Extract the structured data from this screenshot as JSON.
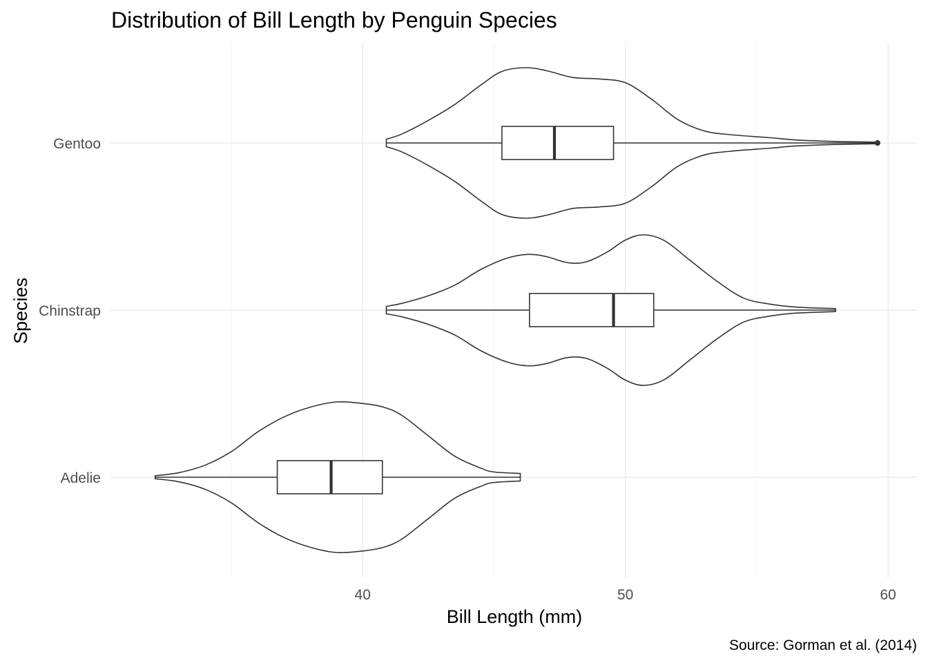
{
  "chart_data": {
    "type": "violin",
    "title": "Distribution of Bill Length by Penguin Species",
    "xlabel": "Bill Length (mm)",
    "ylabel": "Species",
    "caption": "Source: Gorman et al. (2014)",
    "xlim": [
      30.4,
      61.1
    ],
    "x_ticks": [
      40,
      50,
      60
    ],
    "x_tick_labels": [
      "40",
      "50",
      "60"
    ],
    "categories": [
      "Adelie",
      "Chinstrap",
      "Gentoo"
    ],
    "orientation": "horizontal",
    "grid": true,
    "legend": "none",
    "series": [
      {
        "category": "Adelie",
        "violin_range": [
          32.1,
          46.0
        ],
        "density": [
          [
            32.1,
            0.02
          ],
          [
            33.0,
            0.06
          ],
          [
            34.0,
            0.16
          ],
          [
            35.0,
            0.34
          ],
          [
            36.0,
            0.6
          ],
          [
            37.0,
            0.8
          ],
          [
            38.0,
            0.93
          ],
          [
            39.0,
            1.0
          ],
          [
            40.0,
            0.98
          ],
          [
            40.8,
            0.93
          ],
          [
            41.5,
            0.82
          ],
          [
            42.5,
            0.55
          ],
          [
            43.5,
            0.28
          ],
          [
            44.5,
            0.12
          ],
          [
            45.0,
            0.07
          ],
          [
            46.0,
            0.05
          ]
        ],
        "box": {
          "q1": 36.75,
          "median": 38.8,
          "q3": 40.75,
          "whisker_low": 32.1,
          "whisker_high": 46.0
        },
        "outliers": []
      },
      {
        "category": "Chinstrap",
        "violin_range": [
          40.9,
          58.0
        ],
        "density": [
          [
            40.9,
            0.05
          ],
          [
            41.5,
            0.09
          ],
          [
            42.5,
            0.19
          ],
          [
            43.5,
            0.33
          ],
          [
            44.5,
            0.54
          ],
          [
            45.5,
            0.69
          ],
          [
            46.3,
            0.74
          ],
          [
            47.0,
            0.71
          ],
          [
            47.8,
            0.63
          ],
          [
            48.5,
            0.64
          ],
          [
            49.3,
            0.77
          ],
          [
            50.0,
            0.93
          ],
          [
            50.7,
            1.0
          ],
          [
            51.5,
            0.92
          ],
          [
            52.5,
            0.65
          ],
          [
            53.5,
            0.38
          ],
          [
            54.5,
            0.16
          ],
          [
            55.5,
            0.08
          ],
          [
            56.5,
            0.04
          ],
          [
            58.0,
            0.02
          ]
        ],
        "box": {
          "q1": 46.35,
          "median": 49.55,
          "q3": 51.08,
          "whisker_low": 40.9,
          "whisker_high": 58.0
        },
        "outliers": []
      },
      {
        "category": "Gentoo",
        "violin_range": [
          40.9,
          59.6
        ],
        "density": [
          [
            40.9,
            0.05
          ],
          [
            41.5,
            0.12
          ],
          [
            42.5,
            0.3
          ],
          [
            43.5,
            0.51
          ],
          [
            44.5,
            0.77
          ],
          [
            45.3,
            0.95
          ],
          [
            46.2,
            1.0
          ],
          [
            47.0,
            0.96
          ],
          [
            48.0,
            0.87
          ],
          [
            49.0,
            0.85
          ],
          [
            50.0,
            0.8
          ],
          [
            51.0,
            0.58
          ],
          [
            52.0,
            0.31
          ],
          [
            53.0,
            0.16
          ],
          [
            54.0,
            0.11
          ],
          [
            55.5,
            0.07
          ],
          [
            56.5,
            0.04
          ],
          [
            58.0,
            0.02
          ],
          [
            59.6,
            0.01
          ]
        ],
        "box": {
          "q1": 45.3,
          "median": 47.3,
          "q3": 49.55,
          "whisker_low": 40.9,
          "whisker_high": 59.6
        },
        "outliers": [
          59.6
        ]
      }
    ]
  }
}
